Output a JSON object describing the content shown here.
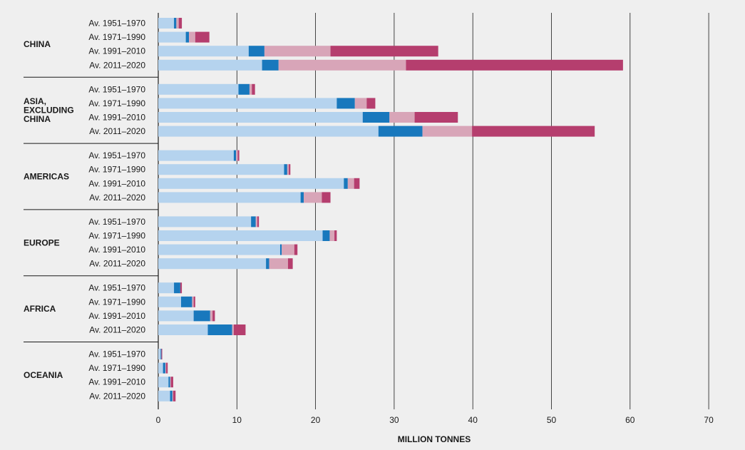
{
  "chart_data": {
    "type": "bar",
    "orientation": "horizontal",
    "stacked": true,
    "xlabel": "MILLION TONNES",
    "xlim": [
      0,
      70
    ],
    "xticks": [
      "0",
      "10",
      "20",
      "30",
      "40",
      "50",
      "60",
      "70"
    ],
    "grid": "vertical",
    "series_colors": [
      "#b5d3ee",
      "#1878bd",
      "#d8a5b8",
      "#b53e6e"
    ],
    "groups": [
      {
        "region": [
          "CHINA"
        ],
        "rows": [
          {
            "label": "Av. 1951–1970",
            "values": [
              2.0,
              0.3,
              0.3,
              0.4
            ]
          },
          {
            "label": "Av. 1971–1990",
            "values": [
              3.5,
              0.4,
              0.8,
              1.8
            ]
          },
          {
            "label": "Av. 1991–2010",
            "values": [
              11.5,
              2.0,
              8.4,
              13.7
            ]
          },
          {
            "label": "Av. 2011–2020",
            "values": [
              13.2,
              2.1,
              16.2,
              27.6
            ]
          }
        ]
      },
      {
        "region": [
          "ASIA,",
          "EXCLUDING",
          "CHINA"
        ],
        "rows": [
          {
            "label": "Av. 1951–1970",
            "values": [
              10.2,
              1.4,
              0.3,
              0.4
            ]
          },
          {
            "label": "Av. 1971–1990",
            "values": [
              22.7,
              2.3,
              1.5,
              1.1
            ]
          },
          {
            "label": "Av. 1991–2010",
            "values": [
              26.0,
              3.4,
              3.2,
              5.5
            ]
          },
          {
            "label": "Av. 2011–2020",
            "values": [
              28.0,
              5.6,
              6.3,
              15.6
            ]
          }
        ]
      },
      {
        "region": [
          "AMERICAS"
        ],
        "rows": [
          {
            "label": "Av. 1951–1970",
            "values": [
              9.6,
              0.3,
              0.2,
              0.2
            ]
          },
          {
            "label": "Av. 1971–1990",
            "values": [
              16.0,
              0.4,
              0.2,
              0.2
            ]
          },
          {
            "label": "Av. 1991–2010",
            "values": [
              23.6,
              0.5,
              0.8,
              0.7
            ]
          },
          {
            "label": "Av. 2011–2020",
            "values": [
              18.1,
              0.4,
              2.3,
              1.1
            ]
          }
        ]
      },
      {
        "region": [
          "EUROPE"
        ],
        "rows": [
          {
            "label": "Av. 1951–1970",
            "values": [
              11.8,
              0.6,
              0.2,
              0.2
            ]
          },
          {
            "label": "Av. 1971–1990",
            "values": [
              20.9,
              0.9,
              0.6,
              0.3
            ]
          },
          {
            "label": "Av. 1991–2010",
            "values": [
              15.5,
              0.2,
              1.6,
              0.4
            ]
          },
          {
            "label": "Av. 2011–2020",
            "values": [
              13.7,
              0.4,
              2.4,
              0.6
            ]
          }
        ]
      },
      {
        "region": [
          "AFRICA"
        ],
        "rows": [
          {
            "label": "Av. 1951–1970",
            "values": [
              2.0,
              0.8,
              0.0,
              0.2
            ]
          },
          {
            "label": "Av. 1971–1990",
            "values": [
              2.9,
              1.4,
              0.2,
              0.2
            ]
          },
          {
            "label": "Av. 1991–2010",
            "values": [
              4.5,
              2.1,
              0.3,
              0.3
            ]
          },
          {
            "label": "Av. 2011–2020",
            "values": [
              6.3,
              3.1,
              0.2,
              1.5
            ]
          }
        ]
      },
      {
        "region": [
          "OCEANIA"
        ],
        "rows": [
          {
            "label": "Av. 1951–1970",
            "values": [
              0.3,
              0.1,
              0.0,
              0.1
            ]
          },
          {
            "label": "Av. 1971–1990",
            "values": [
              0.6,
              0.3,
              0.1,
              0.2
            ]
          },
          {
            "label": "Av. 1991–2010",
            "values": [
              1.3,
              0.2,
              0.1,
              0.3
            ]
          },
          {
            "label": "Av. 2011–2020",
            "values": [
              1.5,
              0.3,
              0.1,
              0.3
            ]
          }
        ]
      }
    ]
  }
}
